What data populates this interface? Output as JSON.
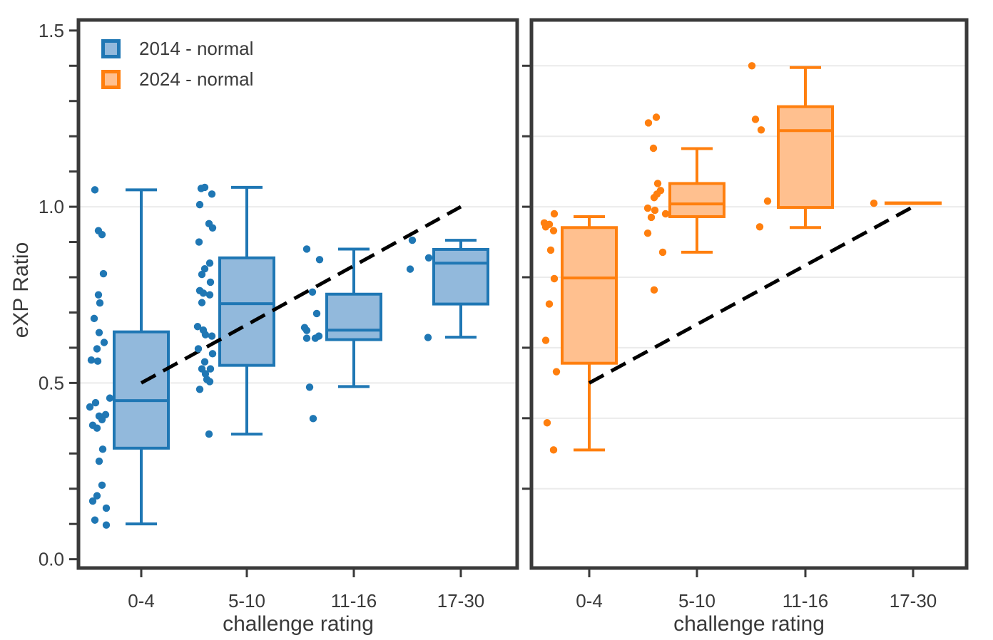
{
  "figure": {
    "ylabel": "eXP Ratio",
    "colors": {
      "axis": "#3a3a3a",
      "grid": "#ebebeb",
      "trend": "#000000",
      "background": "#ffffff",
      "blue_stroke": "#1f77b4",
      "blue_fill": "#92b9dc",
      "orange_stroke": "#ff7f0e",
      "orange_fill": "#ffc08f"
    },
    "legend": {
      "items": [
        {
          "label": "2014 - normal",
          "fill": "#92b9dc",
          "stroke": "#1f77b4"
        },
        {
          "label": "2024 - normal",
          "fill": "#ffc08f",
          "stroke": "#ff7f0e"
        }
      ]
    }
  },
  "chart_data": [
    {
      "type": "box",
      "series": "2014 - normal",
      "xlabel": "challenge rating",
      "categories": [
        "0-4",
        "5-10",
        "11-16",
        "17-30"
      ],
      "ylim": [
        -0.025,
        1.53
      ],
      "yticks": [
        0,
        0.1,
        0.2,
        0.3,
        0.4,
        0.5,
        0.6,
        0.7,
        0.8,
        0.9,
        1.0,
        1.1,
        1.2,
        1.3,
        1.4,
        1.5
      ],
      "ytick_labels": [
        [
          "0.0",
          0.0
        ],
        [
          "0.5",
          0.5
        ],
        [
          "1.0",
          1.0
        ],
        [
          "1.5",
          1.5
        ]
      ],
      "gridlines": [
        0.5,
        1.0
      ],
      "box_stroke": "#1f77b4",
      "box_fill": "#92b9dc",
      "point_color": "#1f77b4",
      "boxes": [
        {
          "category": "0-4",
          "whisker_low": 0.1,
          "q1": 0.315,
          "median": 0.45,
          "q3": 0.645,
          "whisker_high": 1.048
        },
        {
          "category": "5-10",
          "whisker_low": 0.355,
          "q1": 0.55,
          "median": 0.725,
          "q3": 0.855,
          "whisker_high": 1.055
        },
        {
          "category": "11-16",
          "whisker_low": 0.49,
          "q1": 0.623,
          "median": 0.65,
          "q3": 0.752,
          "whisker_high": 0.88
        },
        {
          "category": "17-30",
          "whisker_low": 0.63,
          "q1": 0.724,
          "median": 0.84,
          "q3": 0.879,
          "whisker_high": 0.905
        }
      ],
      "points": [
        [
          [
            -65,
            1.048
          ],
          [
            -60,
            0.932
          ],
          [
            -55,
            0.921
          ],
          [
            -53,
            0.81
          ],
          [
            -60,
            0.75
          ],
          [
            -58,
            0.727
          ],
          [
            -66,
            0.683
          ],
          [
            -59,
            0.643
          ],
          [
            -52,
            0.615
          ],
          [
            -62,
            0.597
          ],
          [
            -70,
            0.565
          ],
          [
            -61,
            0.562
          ],
          [
            -44,
            0.457
          ],
          [
            -64,
            0.444
          ],
          [
            -72,
            0.432
          ],
          [
            -59,
            0.406
          ],
          [
            -50,
            0.41
          ],
          [
            -55,
            0.396
          ],
          [
            -68,
            0.38
          ],
          [
            -62,
            0.372
          ],
          [
            -54,
            0.312
          ],
          [
            -59,
            0.278
          ],
          [
            -55,
            0.21
          ],
          [
            -62,
            0.18
          ],
          [
            -68,
            0.165
          ],
          [
            -49,
            0.145
          ],
          [
            -65,
            0.111
          ],
          [
            -49,
            0.097
          ]
        ],
        [
          [
            -64,
            1.052
          ],
          [
            -59,
            1.055
          ],
          [
            -49,
            1.036
          ],
          [
            -66,
            1.006
          ],
          [
            -53,
            0.952
          ],
          [
            -48,
            0.94
          ],
          [
            -67,
            0.9
          ],
          [
            -52,
            0.84
          ],
          [
            -59,
            0.824
          ],
          [
            -63,
            0.808
          ],
          [
            -51,
            0.786
          ],
          [
            -66,
            0.762
          ],
          [
            -61,
            0.755
          ],
          [
            -52,
            0.75
          ],
          [
            -63,
            0.728
          ],
          [
            -69,
            0.66
          ],
          [
            -61,
            0.65
          ],
          [
            -58,
            0.637
          ],
          [
            -49,
            0.633
          ],
          [
            -68,
            0.597
          ],
          [
            -48,
            0.583
          ],
          [
            -59,
            0.56
          ],
          [
            -63,
            0.54
          ],
          [
            -51,
            0.54
          ],
          [
            -58,
            0.526
          ],
          [
            -56,
            0.51
          ],
          [
            -52,
            0.504
          ],
          [
            -66,
            0.482
          ],
          [
            -53,
            0.355
          ]
        ],
        [
          [
            -66,
            0.88
          ],
          [
            -48,
            0.85
          ],
          [
            -58,
            0.758
          ],
          [
            -52,
            0.697
          ],
          [
            -69,
            0.657
          ],
          [
            -66,
            0.649
          ],
          [
            -66,
            0.627
          ],
          [
            -54,
            0.627
          ],
          [
            -49,
            0.633
          ],
          [
            -62,
            0.488
          ],
          [
            -57,
            0.399
          ]
        ],
        [
          [
            -68,
            0.905
          ],
          [
            -45,
            0.855
          ],
          [
            -71,
            0.823
          ],
          [
            -46,
            0.629
          ]
        ]
      ],
      "trend_dashed_line": {
        "from_category": 0,
        "v_from": 0.5,
        "to_category": 3,
        "v_to": 1.0
      }
    },
    {
      "type": "box",
      "series": "2024 - normal",
      "xlabel": "challenge rating",
      "categories": [
        "0-4",
        "5-10",
        "11-16",
        "17-30"
      ],
      "ylim": [
        -0.025,
        1.53
      ],
      "yticks": [
        0.2,
        0.4,
        0.6,
        0.8,
        1.0,
        1.2,
        1.4
      ],
      "ytick_labels": [],
      "gridlines": [
        0.2,
        0.4,
        0.6,
        0.8,
        1.0,
        1.2,
        1.4
      ],
      "box_stroke": "#ff7f0e",
      "box_fill": "#ffc08f",
      "point_color": "#ff7f0e",
      "boxes": [
        {
          "category": "0-4",
          "whisker_low": 0.31,
          "q1": 0.556,
          "median": 0.798,
          "q3": 0.941,
          "whisker_high": 0.972
        },
        {
          "category": "5-10",
          "whisker_low": 0.871,
          "q1": 0.972,
          "median": 1.008,
          "q3": 1.066,
          "whisker_high": 1.165
        },
        {
          "category": "11-16",
          "whisker_low": 0.941,
          "q1": 0.998,
          "median": 1.216,
          "q3": 1.284,
          "whisker_high": 1.395
        },
        {
          "category": "17-30",
          "whisker_low": 1.01,
          "q1": 1.01,
          "median": 1.01,
          "q3": 1.01,
          "whisker_high": 1.01
        }
      ],
      "points": [
        [
          [
            -49,
            0.98
          ],
          [
            -63,
            0.954
          ],
          [
            -56,
            0.95
          ],
          [
            -61,
            0.943
          ],
          [
            -50,
            0.932
          ],
          [
            -54,
            0.877
          ],
          [
            -49,
            0.796
          ],
          [
            -56,
            0.724
          ],
          [
            -61,
            0.621
          ],
          [
            -46,
            0.532
          ],
          [
            -59,
            0.387
          ],
          [
            -50,
            0.31
          ]
        ],
        [
          [
            -57,
            1.254
          ],
          [
            -68,
            1.238
          ],
          [
            -61,
            1.166
          ],
          [
            -55,
            1.066
          ],
          [
            -51,
            1.046
          ],
          [
            -56,
            1.036
          ],
          [
            -60,
            1.026
          ],
          [
            -69,
            0.996
          ],
          [
            -59,
            0.99
          ],
          [
            -44,
            0.98
          ],
          [
            -64,
            0.97
          ],
          [
            -69,
            0.925
          ],
          [
            -48,
            0.871
          ],
          [
            -60,
            0.764
          ]
        ],
        [
          [
            -75,
            1.4
          ],
          [
            -70,
            1.248
          ],
          [
            -62,
            1.218
          ],
          [
            -53,
            1.016
          ],
          [
            -64,
            0.943
          ]
        ],
        [
          [
            -55,
            1.01
          ]
        ]
      ],
      "trend_dashed_line": {
        "from_category": 0,
        "v_from": 0.5,
        "to_category": 3,
        "v_to": 1.0
      }
    }
  ]
}
